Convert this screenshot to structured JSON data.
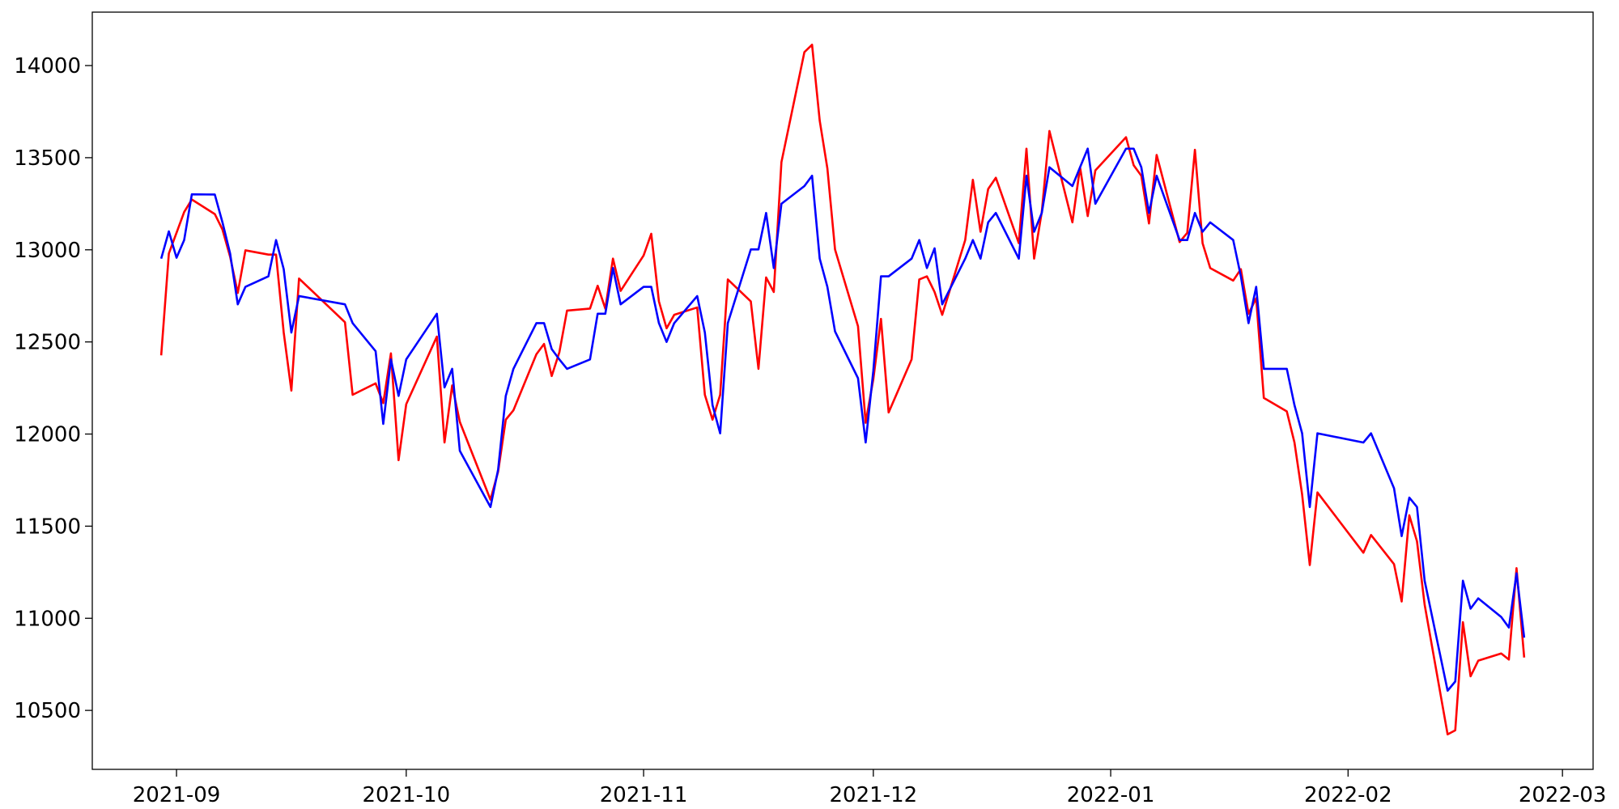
{
  "chart_data": {
    "type": "line",
    "x": [
      "2021-08-30",
      "2021-08-31",
      "2021-09-01",
      "2021-09-02",
      "2021-09-03",
      "2021-09-06",
      "2021-09-07",
      "2021-09-08",
      "2021-09-09",
      "2021-09-10",
      "2021-09-13",
      "2021-09-14",
      "2021-09-15",
      "2021-09-16",
      "2021-09-17",
      "2021-09-23",
      "2021-09-24",
      "2021-09-27",
      "2021-09-28",
      "2021-09-29",
      "2021-09-30",
      "2021-10-01",
      "2021-10-05",
      "2021-10-06",
      "2021-10-07",
      "2021-10-08",
      "2021-10-12",
      "2021-10-13",
      "2021-10-14",
      "2021-10-15",
      "2021-10-18",
      "2021-10-19",
      "2021-10-20",
      "2021-10-21",
      "2021-10-22",
      "2021-10-25",
      "2021-10-26",
      "2021-10-27",
      "2021-10-28",
      "2021-10-29",
      "2021-11-01",
      "2021-11-02",
      "2021-11-03",
      "2021-11-04",
      "2021-11-05",
      "2021-11-08",
      "2021-11-09",
      "2021-11-10",
      "2021-11-11",
      "2021-11-12",
      "2021-11-15",
      "2021-11-16",
      "2021-11-17",
      "2021-11-18",
      "2021-11-19",
      "2021-11-22",
      "2021-11-23",
      "2021-11-24",
      "2021-11-25",
      "2021-11-26",
      "2021-11-29",
      "2021-11-30",
      "2021-12-01",
      "2021-12-02",
      "2021-12-03",
      "2021-12-06",
      "2021-12-07",
      "2021-12-08",
      "2021-12-09",
      "2021-12-10",
      "2021-12-13",
      "2021-12-14",
      "2021-12-15",
      "2021-12-16",
      "2021-12-17",
      "2021-12-20",
      "2021-12-21",
      "2021-12-22",
      "2021-12-23",
      "2021-12-24",
      "2021-12-27",
      "2021-12-28",
      "2021-12-29",
      "2021-12-30",
      "2022-01-03",
      "2022-01-04",
      "2022-01-05",
      "2022-01-06",
      "2022-01-07",
      "2022-01-10",
      "2022-01-11",
      "2022-01-12",
      "2022-01-13",
      "2022-01-14",
      "2022-01-17",
      "2022-01-18",
      "2022-01-19",
      "2022-01-20",
      "2022-01-21",
      "2022-01-24",
      "2022-01-25",
      "2022-01-26",
      "2022-01-27",
      "2022-01-28",
      "2022-02-03",
      "2022-02-04",
      "2022-02-07",
      "2022-02-08",
      "2022-02-09",
      "2022-02-10",
      "2022-02-11",
      "2022-02-14",
      "2022-02-15",
      "2022-02-16",
      "2022-02-17",
      "2022-02-18",
      "2022-02-21",
      "2022-02-22",
      "2022-02-23",
      "2022-02-24"
    ],
    "series": [
      {
        "color": "#ff0000",
        "values": [
          12427,
          12980,
          13092,
          13205,
          13273,
          13194,
          13110,
          12963,
          12766,
          12997,
          12974,
          12974,
          12551,
          12236,
          12844,
          12607,
          12213,
          12275,
          12168,
          12438,
          11858,
          12162,
          12529,
          11954,
          12264,
          12066,
          11644,
          11796,
          12078,
          12129,
          12433,
          12489,
          12315,
          12444,
          12670,
          12681,
          12805,
          12681,
          12952,
          12777,
          12969,
          13087,
          12720,
          12574,
          12647,
          12687,
          12213,
          12078,
          12213,
          12839,
          12720,
          12354,
          12850,
          12771,
          13476,
          14073,
          14113,
          13701,
          13442,
          13002,
          12585,
          12061,
          12298,
          12625,
          12117,
          12405,
          12839,
          12856,
          12771,
          12647,
          13053,
          13380,
          13098,
          13330,
          13391,
          13036,
          13549,
          12952,
          13205,
          13645,
          13149,
          13448,
          13183,
          13431,
          13611,
          13459,
          13402,
          13143,
          13515,
          13042,
          13092,
          13543,
          13036,
          12901,
          12833,
          12895,
          12653,
          12737,
          12196,
          12123,
          11954,
          11672,
          11289,
          11683,
          11356,
          11452,
          11294,
          11091,
          11559,
          11418,
          11074,
          10370,
          10392,
          10979,
          10685,
          10770,
          10809,
          10776,
          11272,
          10787
        ]
      },
      {
        "color": "#0000ff",
        "values": [
          12952,
          13100,
          12957,
          13053,
          13301,
          13300,
          13149,
          12980,
          12704,
          12799,
          12856,
          13053,
          12895,
          12551,
          12749,
          12704,
          12602,
          12450,
          12055,
          12405,
          12207,
          12405,
          12653,
          12253,
          12354,
          11909,
          11604,
          11807,
          12207,
          12354,
          12602,
          12602,
          12461,
          12405,
          12354,
          12405,
          12653,
          12653,
          12901,
          12704,
          12799,
          12799,
          12602,
          12500,
          12602,
          12749,
          12551,
          12157,
          12004,
          12602,
          13002,
          13002,
          13200,
          12901,
          13250,
          13346,
          13402,
          12952,
          12799,
          12557,
          12303,
          11954,
          12343,
          12856,
          12856,
          12952,
          13053,
          12901,
          13008,
          12704,
          12952,
          13053,
          12952,
          13149,
          13200,
          12952,
          13402,
          13098,
          13200,
          13448,
          13346,
          13448,
          13549,
          13250,
          13549,
          13549,
          13448,
          13200,
          13402,
          13053,
          13053,
          13200,
          13098,
          13149,
          13053,
          12856,
          12602,
          12799,
          12354,
          12354,
          12157,
          12004,
          11604,
          12004,
          11954,
          12004,
          11706,
          11446,
          11655,
          11604,
          11204,
          10607,
          10657,
          11204,
          11052,
          11108,
          11007,
          10950,
          11244,
          10895
        ]
      }
    ],
    "xlim": [
      "2021-08-21",
      "2022-03-05"
    ],
    "xticks": [
      {
        "value": "2021-09-01",
        "label": "2021-09"
      },
      {
        "value": "2021-10-01",
        "label": "2021-10"
      },
      {
        "value": "2021-11-01",
        "label": "2021-11"
      },
      {
        "value": "2021-12-01",
        "label": "2021-12"
      },
      {
        "value": "2022-01-01",
        "label": "2022-01"
      },
      {
        "value": "2022-02-01",
        "label": "2022-02"
      },
      {
        "value": "2022-03-01",
        "label": "2022-03"
      }
    ],
    "ylim": [
      10180,
      14290
    ],
    "yticks": [
      10500,
      11000,
      11500,
      12000,
      12500,
      13000,
      13500,
      14000
    ],
    "grid": false
  }
}
